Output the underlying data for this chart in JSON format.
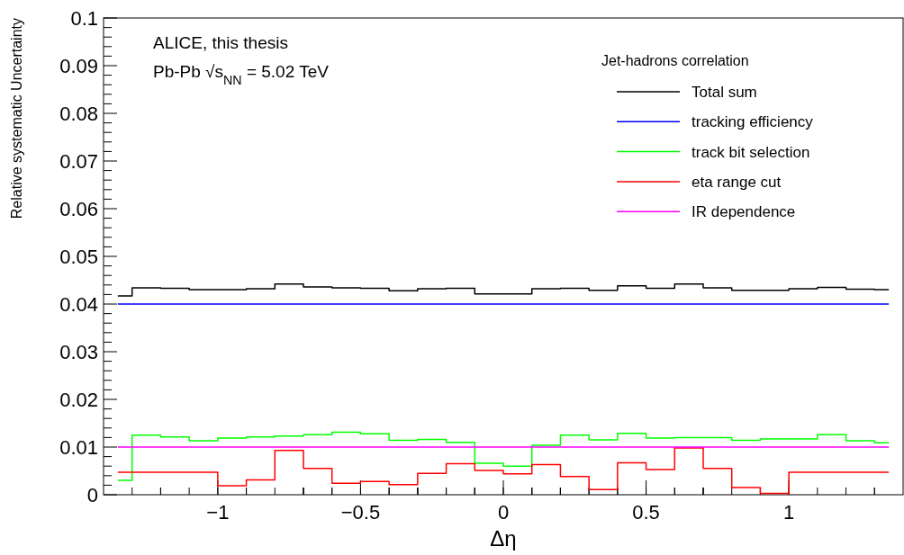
{
  "chart_data": {
    "type": "step",
    "xlabel": "Δη",
    "ylabel": "Relative systematic Uncertainty",
    "legend_title": "Jet-hadrons correlation",
    "annotations": [
      "ALICE, this thesis",
      "Pb-Pb √s$_{NN}$ = 5.02 TeV"
    ],
    "x": [
      -1.35,
      -1.25,
      -1.15,
      -1.05,
      -0.95,
      -0.85,
      -0.75,
      -0.65,
      -0.55,
      -0.45,
      -0.35,
      -0.25,
      -0.15,
      -0.05,
      0.05,
      0.15,
      0.25,
      0.35,
      0.45,
      0.55,
      0.65,
      0.75,
      0.85,
      0.95,
      1.05,
      1.15,
      1.25,
      1.35
    ],
    "xlim": [
      -1.4,
      1.4
    ],
    "ylim": [
      0,
      0.1
    ],
    "xticks": [
      {
        "value": -1,
        "label": "−1"
      },
      {
        "value": -0.5,
        "label": "−0.5"
      },
      0,
      0.5,
      1
    ],
    "yticks": [
      0,
      0.01,
      0.02,
      0.03,
      0.04,
      0.05,
      0.06,
      0.07,
      0.08,
      0.09,
      0.1
    ],
    "grid": false,
    "legend": "top right",
    "marker": "none",
    "line_style": "solid",
    "series": [
      {
        "name": "Total sum",
        "color": "#000000",
        "values": [
          0.0417,
          0.0434,
          0.0433,
          0.043,
          0.043,
          0.0432,
          0.0442,
          0.0436,
          0.0434,
          0.0433,
          0.0428,
          0.0432,
          0.0433,
          0.0421,
          0.0421,
          0.0432,
          0.0433,
          0.0429,
          0.0438,
          0.0433,
          0.0442,
          0.0434,
          0.0429,
          0.0429,
          0.0432,
          0.0435,
          0.0431,
          0.043
        ]
      },
      {
        "name": "tracking efficiency",
        "color": "#0000ff",
        "values": [
          0.04,
          0.04,
          0.04,
          0.04,
          0.04,
          0.04,
          0.04,
          0.04,
          0.04,
          0.04,
          0.04,
          0.04,
          0.04,
          0.04,
          0.04,
          0.04,
          0.04,
          0.04,
          0.04,
          0.04,
          0.04,
          0.04,
          0.04,
          0.04,
          0.04,
          0.04,
          0.04,
          0.04
        ]
      },
      {
        "name": "track bit selection",
        "color": "#00ff00",
        "values": [
          0.003,
          0.0125,
          0.0121,
          0.0113,
          0.0119,
          0.0121,
          0.0123,
          0.0126,
          0.0131,
          0.0128,
          0.0114,
          0.0116,
          0.011,
          0.0066,
          0.006,
          0.0104,
          0.0125,
          0.0115,
          0.0129,
          0.0119,
          0.012,
          0.012,
          0.0114,
          0.0117,
          0.0117,
          0.0126,
          0.0113,
          0.0109
        ]
      },
      {
        "name": "eta range cut",
        "color": "#ff0000",
        "values": [
          0.0047,
          0.0047,
          0.0047,
          0.0047,
          0.0019,
          0.0031,
          0.0093,
          0.0055,
          0.0024,
          0.0028,
          0.0021,
          0.0045,
          0.0065,
          0.0051,
          0.0044,
          0.0063,
          0.0038,
          0.0011,
          0.0067,
          0.0053,
          0.0098,
          0.0055,
          0.0015,
          0.0003,
          0.0047,
          0.0047,
          0.0047,
          0.0047
        ]
      },
      {
        "name": "IR dependence",
        "color": "#ff00ff",
        "values": [
          0.01,
          0.01,
          0.01,
          0.01,
          0.01,
          0.01,
          0.01,
          0.01,
          0.01,
          0.01,
          0.01,
          0.01,
          0.01,
          0.01,
          0.01,
          0.01,
          0.01,
          0.01,
          0.01,
          0.01,
          0.01,
          0.01,
          0.01,
          0.01,
          0.01,
          0.01,
          0.01,
          0.01
        ]
      }
    ]
  }
}
